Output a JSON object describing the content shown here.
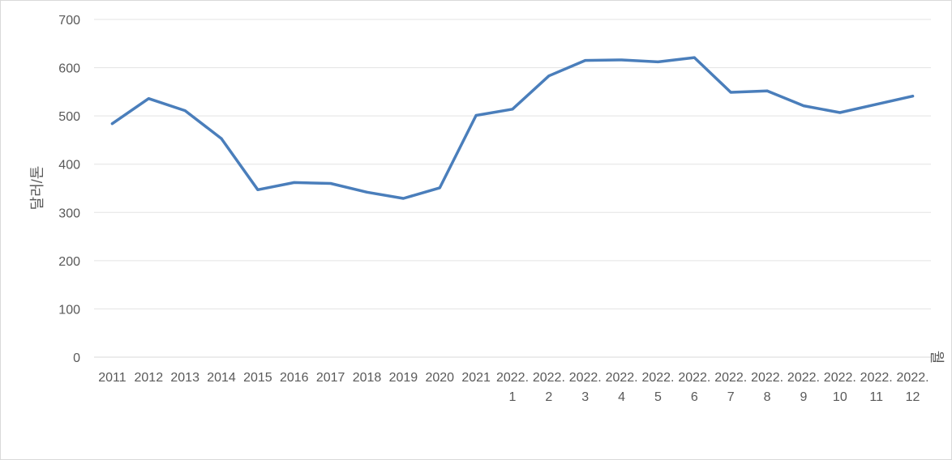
{
  "chart_data": {
    "type": "line",
    "xlabel": "월",
    "ylabel": "달러/톤",
    "ylim": [
      0,
      700
    ],
    "yticks": [
      "0",
      "100",
      "200",
      "300",
      "400",
      "500",
      "600",
      "700"
    ],
    "grid": true,
    "legend": "none",
    "categories": [
      [
        "2011"
      ],
      [
        "2012"
      ],
      [
        "2013"
      ],
      [
        "2014"
      ],
      [
        "2015"
      ],
      [
        "2016"
      ],
      [
        "2017"
      ],
      [
        "2018"
      ],
      [
        "2019"
      ],
      [
        "2020"
      ],
      [
        "2021"
      ],
      [
        "2022.",
        "1"
      ],
      [
        "2022.",
        "2"
      ],
      [
        "2022.",
        "3"
      ],
      [
        "2022.",
        "4"
      ],
      [
        "2022.",
        "5"
      ],
      [
        "2022.",
        "6"
      ],
      [
        "2022.",
        "7"
      ],
      [
        "2022.",
        "8"
      ],
      [
        "2022.",
        "9"
      ],
      [
        "2022.",
        "10"
      ],
      [
        "2022.",
        "11"
      ],
      [
        "2022.",
        "12"
      ]
    ],
    "series": [
      {
        "color": "#4a7ebb",
        "values": [
          484,
          536,
          511,
          453,
          347,
          362,
          360,
          342,
          329,
          351,
          501,
          514,
          583,
          615,
          616,
          612,
          621,
          549,
          552,
          521,
          507,
          524,
          541
        ]
      }
    ]
  }
}
